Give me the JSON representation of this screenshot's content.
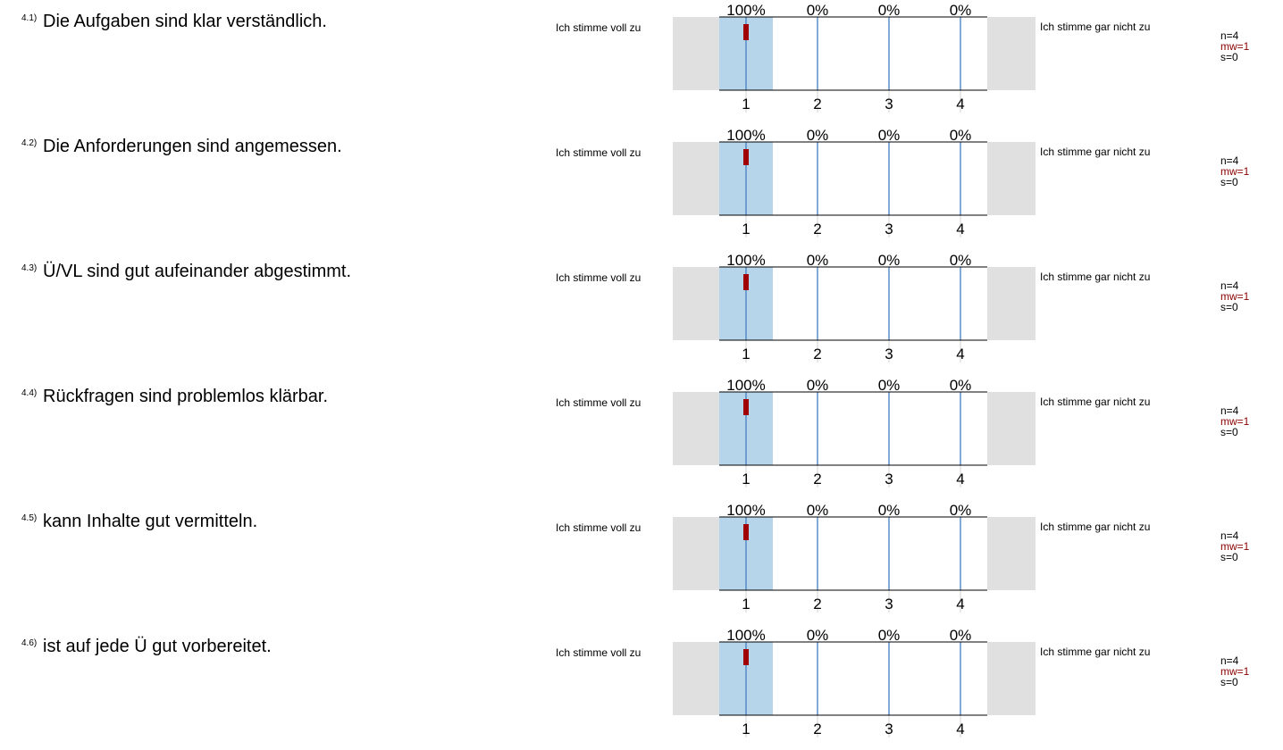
{
  "chart_data": [
    {
      "type": "bar",
      "number": "4.1)",
      "question": "Die Aufgaben sind klar verständlich.",
      "left_label": "Ich stimme voll zu",
      "right_label": "Ich stimme gar nicht zu",
      "categories": [
        "1",
        "2",
        "3",
        "4"
      ],
      "percentages": [
        "100%",
        "0%",
        "0%",
        "0%"
      ],
      "values": [
        100,
        0,
        0,
        0
      ],
      "mean": 1,
      "n": "n=4",
      "mw": "mw=1",
      "s": "s=0"
    },
    {
      "type": "bar",
      "number": "4.2)",
      "question": "Die Anforderungen sind angemessen.",
      "left_label": "Ich stimme voll zu",
      "right_label": "Ich stimme gar nicht zu",
      "categories": [
        "1",
        "2",
        "3",
        "4"
      ],
      "percentages": [
        "100%",
        "0%",
        "0%",
        "0%"
      ],
      "values": [
        100,
        0,
        0,
        0
      ],
      "mean": 1,
      "n": "n=4",
      "mw": "mw=1",
      "s": "s=0"
    },
    {
      "type": "bar",
      "number": "4.3)",
      "question": "Ü/VL sind gut aufeinander abgestimmt.",
      "left_label": "Ich stimme voll zu",
      "right_label": "Ich stimme gar nicht zu",
      "categories": [
        "1",
        "2",
        "3",
        "4"
      ],
      "percentages": [
        "100%",
        "0%",
        "0%",
        "0%"
      ],
      "values": [
        100,
        0,
        0,
        0
      ],
      "mean": 1,
      "n": "n=4",
      "mw": "mw=1",
      "s": "s=0"
    },
    {
      "type": "bar",
      "number": "4.4)",
      "question": "Rückfragen sind  problemlos klärbar.",
      "left_label": "Ich stimme voll zu",
      "right_label": "Ich stimme gar nicht zu",
      "categories": [
        "1",
        "2",
        "3",
        "4"
      ],
      "percentages": [
        "100%",
        "0%",
        "0%",
        "0%"
      ],
      "values": [
        100,
        0,
        0,
        0
      ],
      "mean": 1,
      "n": "n=4",
      "mw": "mw=1",
      "s": "s=0"
    },
    {
      "type": "bar",
      "number": "4.5)",
      "question": "kann Inhalte gut vermitteln.",
      "left_label": "Ich stimme voll zu",
      "right_label": "Ich stimme gar nicht zu",
      "categories": [
        "1",
        "2",
        "3",
        "4"
      ],
      "percentages": [
        "100%",
        "0%",
        "0%",
        "0%"
      ],
      "values": [
        100,
        0,
        0,
        0
      ],
      "mean": 1,
      "n": "n=4",
      "mw": "mw=1",
      "s": "s=0"
    },
    {
      "type": "bar",
      "number": "4.6)",
      "question": "ist auf jede Ü gut vorbereitet.",
      "left_label": "Ich stimme voll zu",
      "right_label": "Ich stimme gar nicht zu",
      "categories": [
        "1",
        "2",
        "3",
        "4"
      ],
      "percentages": [
        "100%",
        "0%",
        "0%",
        "0%"
      ],
      "values": [
        100,
        0,
        0,
        0
      ],
      "mean": 1,
      "n": "n=4",
      "mw": "mw=1",
      "s": "s=0"
    }
  ],
  "colors": {
    "bar": "#b6d4ea",
    "line": "#4f86c6",
    "mean": "#a00000",
    "side": "#e0e0e0",
    "stat_mw": "#8b0000"
  }
}
